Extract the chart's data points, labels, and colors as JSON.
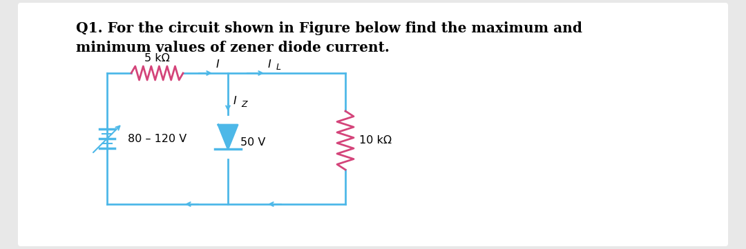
{
  "title_line1": "Q1. For the circuit shown in Figure below find the maximum and",
  "title_line2": "minimum values of zener diode current.",
  "bg_color": "#e8e8e8",
  "panel_color": "#ffffff",
  "circuit_color": "#4db8e8",
  "resistor_color": "#d4447a",
  "text_color": "#2a2a2a",
  "title_fontsize": 14.5,
  "label_5kohm": "5 kΩ",
  "label_I": "I",
  "label_IL": "I",
  "label_IL_sub": "L",
  "label_Iz": "I",
  "label_Iz_sub": "Z",
  "label_voltage_src": "80 – 120 V",
  "label_zener": "50 V",
  "label_load": "10 kΩ"
}
